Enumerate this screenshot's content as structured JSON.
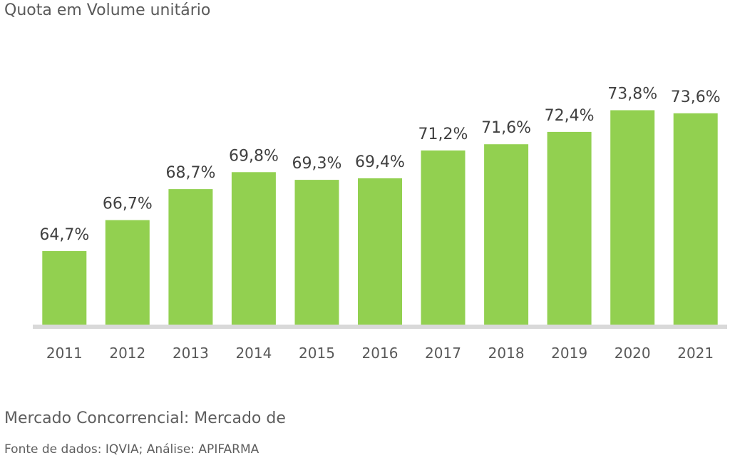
{
  "chart_data": {
    "type": "bar",
    "title": "Quota em Volume unitário",
    "categories": [
      "2011",
      "2012",
      "2013",
      "2014",
      "2015",
      "2016",
      "2017",
      "2018",
      "2019",
      "2020",
      "2021"
    ],
    "values": [
      64.7,
      66.7,
      68.7,
      69.8,
      69.3,
      69.4,
      71.2,
      71.6,
      72.4,
      73.8,
      73.6
    ],
    "data_labels": [
      "64,7%",
      "66,7%",
      "68,7%",
      "69,8%",
      "69,3%",
      "69,4%",
      "71,2%",
      "71,6%",
      "72,4%",
      "73,8%",
      "73,6%"
    ],
    "ylim": [
      59.9,
      74.1
    ],
    "grid": false,
    "legend": "none",
    "bar_color": "#92d050",
    "axis_color": "#d9d9d9",
    "label_color": "#404040",
    "tick_color": "#595959"
  },
  "footer": {
    "line1": "Mercado Concorrencial: Mercado de",
    "line2": "Fonte de dados: IQVIA; Análise: APIFARMA"
  }
}
